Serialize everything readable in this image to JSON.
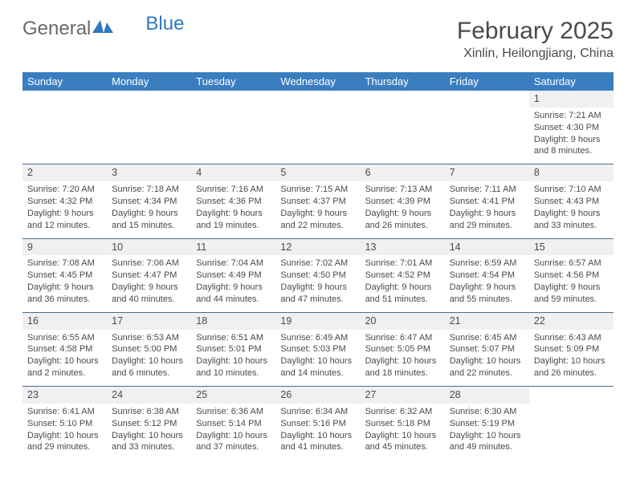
{
  "logo": {
    "left": "General",
    "right": "Blue"
  },
  "title": "February 2025",
  "subtitle": "Xinlin, Heilongjiang, China",
  "colors": {
    "header_bar": "#3a7ec0",
    "header_text": "#ffffff",
    "row_border": "#4a6f94",
    "num_bg": "#f0f0f0",
    "text": "#4a4a4a",
    "logo_gray": "#6a6a6a",
    "logo_blue": "#2f78bf"
  },
  "weekdays": [
    "Sunday",
    "Monday",
    "Tuesday",
    "Wednesday",
    "Thursday",
    "Friday",
    "Saturday"
  ],
  "weeks": [
    [
      {
        "empty": true
      },
      {
        "empty": true
      },
      {
        "empty": true
      },
      {
        "empty": true
      },
      {
        "empty": true
      },
      {
        "empty": true
      },
      {
        "n": "1",
        "sr": "Sunrise: 7:21 AM",
        "ss": "Sunset: 4:30 PM",
        "dl": "Daylight: 9 hours and 8 minutes."
      }
    ],
    [
      {
        "n": "2",
        "sr": "Sunrise: 7:20 AM",
        "ss": "Sunset: 4:32 PM",
        "dl": "Daylight: 9 hours and 12 minutes."
      },
      {
        "n": "3",
        "sr": "Sunrise: 7:18 AM",
        "ss": "Sunset: 4:34 PM",
        "dl": "Daylight: 9 hours and 15 minutes."
      },
      {
        "n": "4",
        "sr": "Sunrise: 7:16 AM",
        "ss": "Sunset: 4:36 PM",
        "dl": "Daylight: 9 hours and 19 minutes."
      },
      {
        "n": "5",
        "sr": "Sunrise: 7:15 AM",
        "ss": "Sunset: 4:37 PM",
        "dl": "Daylight: 9 hours and 22 minutes."
      },
      {
        "n": "6",
        "sr": "Sunrise: 7:13 AM",
        "ss": "Sunset: 4:39 PM",
        "dl": "Daylight: 9 hours and 26 minutes."
      },
      {
        "n": "7",
        "sr": "Sunrise: 7:11 AM",
        "ss": "Sunset: 4:41 PM",
        "dl": "Daylight: 9 hours and 29 minutes."
      },
      {
        "n": "8",
        "sr": "Sunrise: 7:10 AM",
        "ss": "Sunset: 4:43 PM",
        "dl": "Daylight: 9 hours and 33 minutes."
      }
    ],
    [
      {
        "n": "9",
        "sr": "Sunrise: 7:08 AM",
        "ss": "Sunset: 4:45 PM",
        "dl": "Daylight: 9 hours and 36 minutes."
      },
      {
        "n": "10",
        "sr": "Sunrise: 7:06 AM",
        "ss": "Sunset: 4:47 PM",
        "dl": "Daylight: 9 hours and 40 minutes."
      },
      {
        "n": "11",
        "sr": "Sunrise: 7:04 AM",
        "ss": "Sunset: 4:49 PM",
        "dl": "Daylight: 9 hours and 44 minutes."
      },
      {
        "n": "12",
        "sr": "Sunrise: 7:02 AM",
        "ss": "Sunset: 4:50 PM",
        "dl": "Daylight: 9 hours and 47 minutes."
      },
      {
        "n": "13",
        "sr": "Sunrise: 7:01 AM",
        "ss": "Sunset: 4:52 PM",
        "dl": "Daylight: 9 hours and 51 minutes."
      },
      {
        "n": "14",
        "sr": "Sunrise: 6:59 AM",
        "ss": "Sunset: 4:54 PM",
        "dl": "Daylight: 9 hours and 55 minutes."
      },
      {
        "n": "15",
        "sr": "Sunrise: 6:57 AM",
        "ss": "Sunset: 4:56 PM",
        "dl": "Daylight: 9 hours and 59 minutes."
      }
    ],
    [
      {
        "n": "16",
        "sr": "Sunrise: 6:55 AM",
        "ss": "Sunset: 4:58 PM",
        "dl": "Daylight: 10 hours and 2 minutes."
      },
      {
        "n": "17",
        "sr": "Sunrise: 6:53 AM",
        "ss": "Sunset: 5:00 PM",
        "dl": "Daylight: 10 hours and 6 minutes."
      },
      {
        "n": "18",
        "sr": "Sunrise: 6:51 AM",
        "ss": "Sunset: 5:01 PM",
        "dl": "Daylight: 10 hours and 10 minutes."
      },
      {
        "n": "19",
        "sr": "Sunrise: 6:49 AM",
        "ss": "Sunset: 5:03 PM",
        "dl": "Daylight: 10 hours and 14 minutes."
      },
      {
        "n": "20",
        "sr": "Sunrise: 6:47 AM",
        "ss": "Sunset: 5:05 PM",
        "dl": "Daylight: 10 hours and 18 minutes."
      },
      {
        "n": "21",
        "sr": "Sunrise: 6:45 AM",
        "ss": "Sunset: 5:07 PM",
        "dl": "Daylight: 10 hours and 22 minutes."
      },
      {
        "n": "22",
        "sr": "Sunrise: 6:43 AM",
        "ss": "Sunset: 5:09 PM",
        "dl": "Daylight: 10 hours and 26 minutes."
      }
    ],
    [
      {
        "n": "23",
        "sr": "Sunrise: 6:41 AM",
        "ss": "Sunset: 5:10 PM",
        "dl": "Daylight: 10 hours and 29 minutes."
      },
      {
        "n": "24",
        "sr": "Sunrise: 6:38 AM",
        "ss": "Sunset: 5:12 PM",
        "dl": "Daylight: 10 hours and 33 minutes."
      },
      {
        "n": "25",
        "sr": "Sunrise: 6:36 AM",
        "ss": "Sunset: 5:14 PM",
        "dl": "Daylight: 10 hours and 37 minutes."
      },
      {
        "n": "26",
        "sr": "Sunrise: 6:34 AM",
        "ss": "Sunset: 5:16 PM",
        "dl": "Daylight: 10 hours and 41 minutes."
      },
      {
        "n": "27",
        "sr": "Sunrise: 6:32 AM",
        "ss": "Sunset: 5:18 PM",
        "dl": "Daylight: 10 hours and 45 minutes."
      },
      {
        "n": "28",
        "sr": "Sunrise: 6:30 AM",
        "ss": "Sunset: 5:19 PM",
        "dl": "Daylight: 10 hours and 49 minutes."
      },
      {
        "empty": true
      }
    ]
  ]
}
